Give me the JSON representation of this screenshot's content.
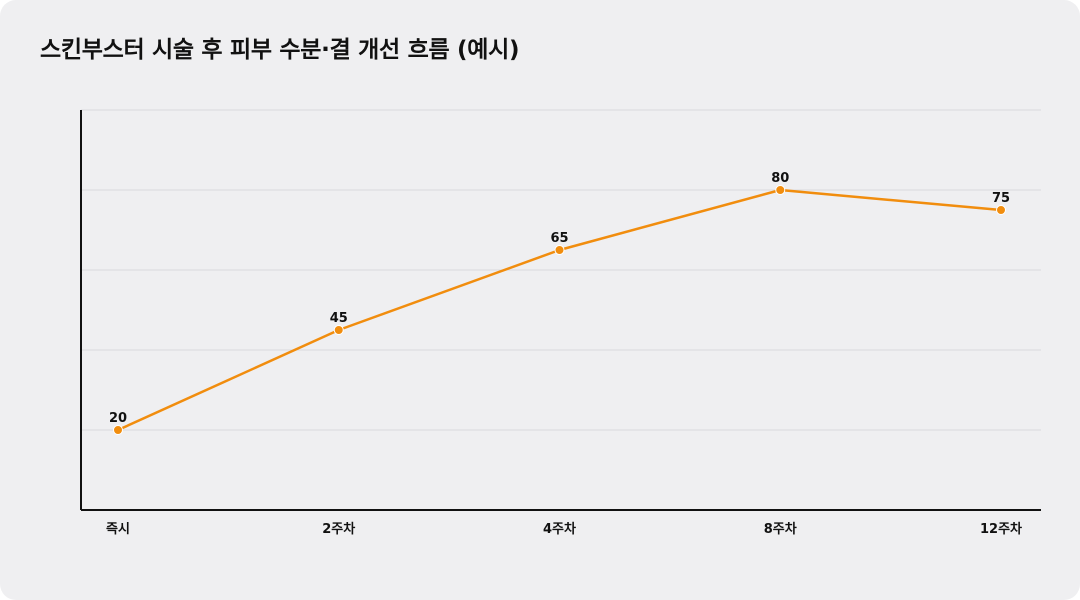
{
  "title": "스킨부스터 시술 후 피부 수분·결 개선 흐름 (예시)",
  "colors": {
    "background": "#efeff1",
    "line": "#f18d0e",
    "point": "#f18d0e",
    "grid": "#d9d9dd",
    "axis": "#111111",
    "text": "#111111"
  },
  "chart_data": {
    "type": "line",
    "title": "스킨부스터 시술 후 피부 수분·결 개선 흐름 (예시)",
    "xlabel": "",
    "ylabel": "",
    "categories": [
      "즉시",
      "2주차",
      "4주차",
      "8주차",
      "12주차"
    ],
    "series": [
      {
        "values": [
          20,
          45,
          65,
          80,
          75
        ]
      }
    ],
    "ylim": [
      0,
      100
    ],
    "grid": true,
    "gridlines": [
      20,
      40,
      60,
      80,
      100
    ],
    "data_labels": true,
    "show_y_tick_labels": false
  }
}
